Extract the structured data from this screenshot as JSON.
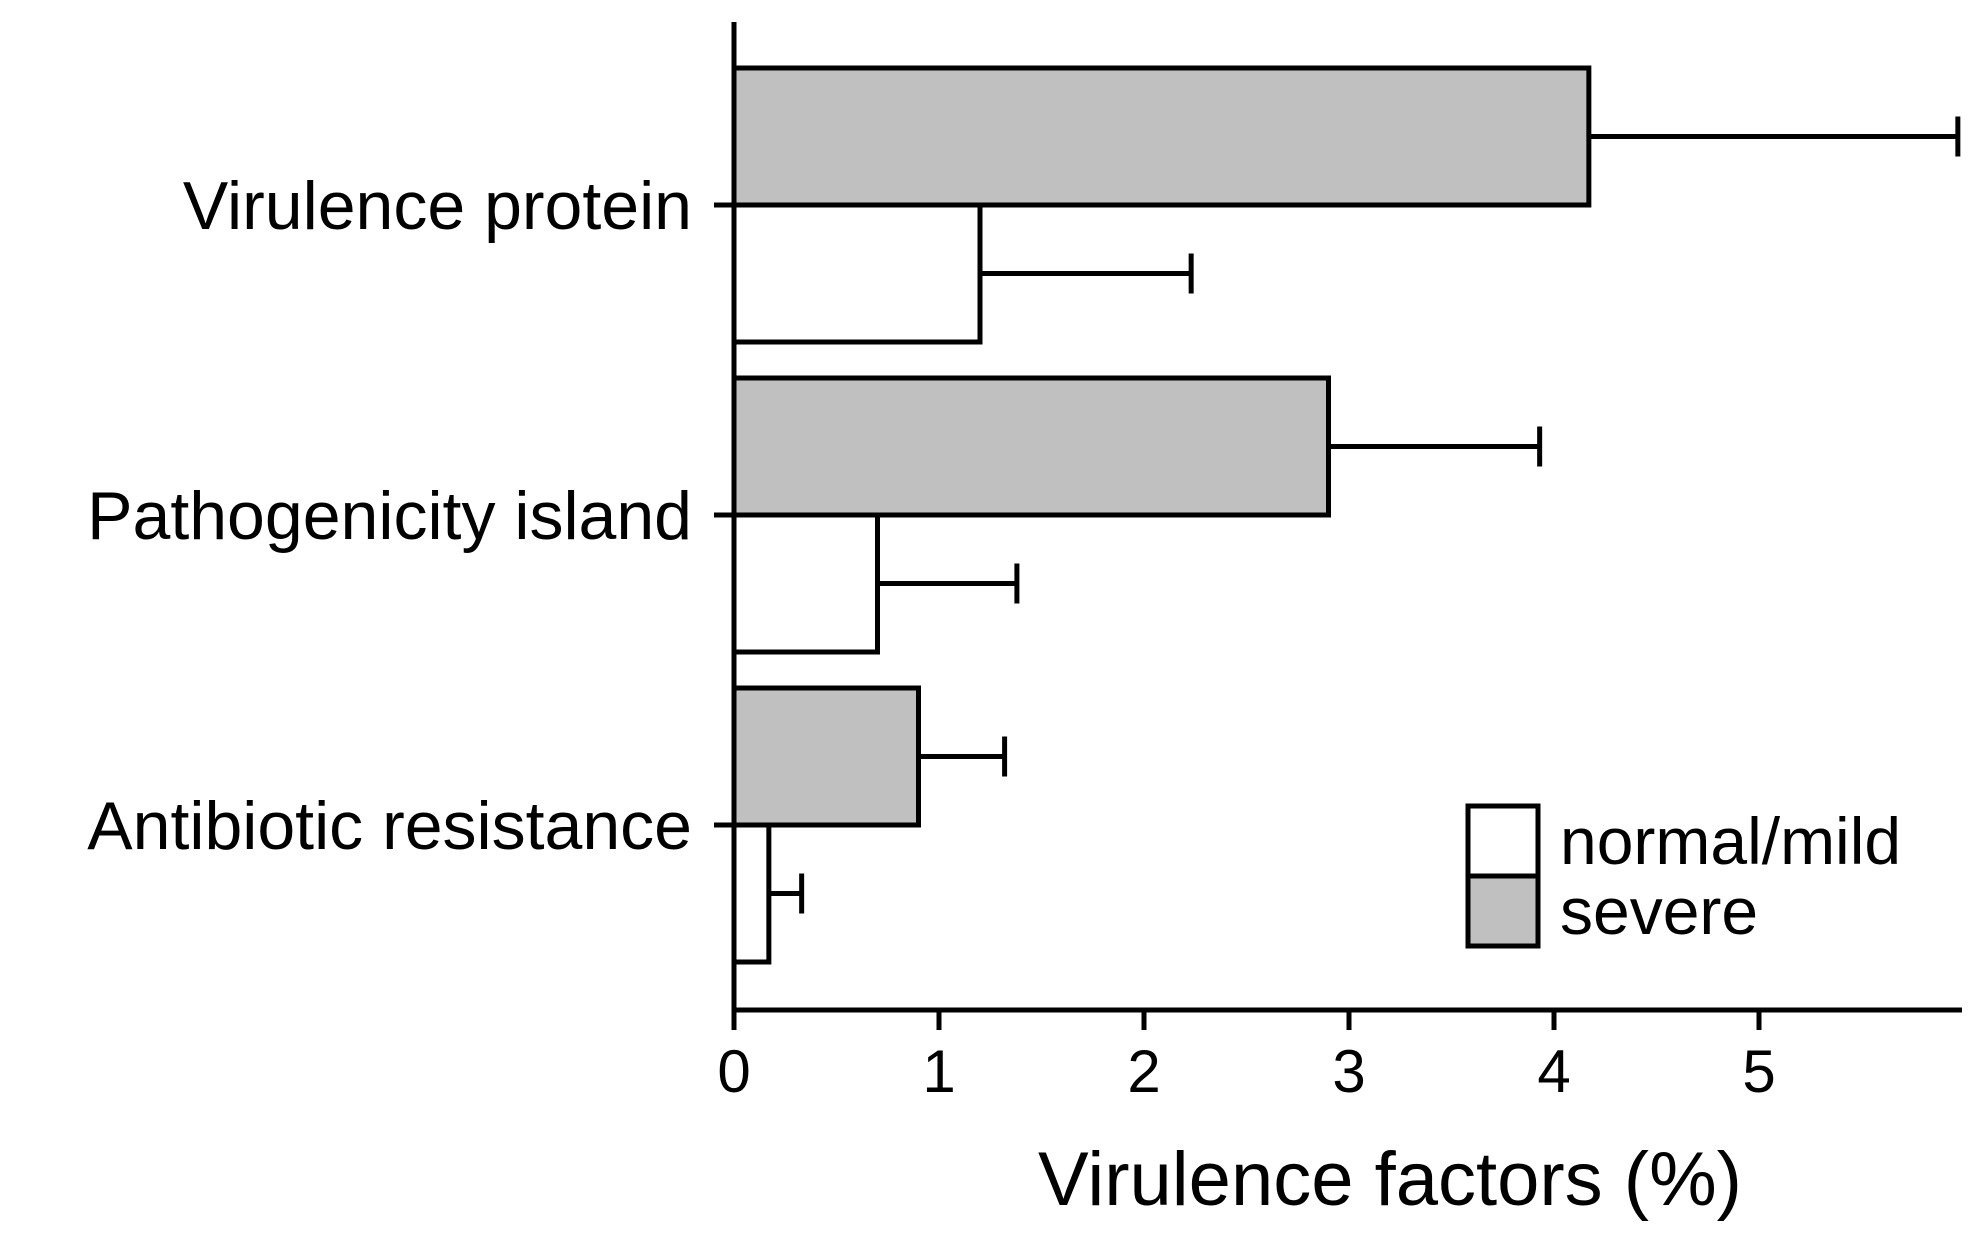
{
  "chart_data": {
    "type": "bar",
    "orientation": "horizontal",
    "categories": [
      "Virulence protein",
      "Pathogenicity island",
      "Antibiotic resistance"
    ],
    "series": [
      {
        "name": "severe",
        "color": "#c0c0c0",
        "values": [
          4.17,
          2.9,
          0.9
        ],
        "errors": [
          1.8,
          1.03,
          0.42
        ]
      },
      {
        "name": "normal/mild",
        "color": "#ffffff",
        "values": [
          1.2,
          0.7,
          0.17
        ],
        "errors": [
          1.03,
          0.68,
          0.16
        ]
      }
    ],
    "xlabel": "Virulence factors (%)",
    "xlim": [
      0,
      5.95
    ],
    "xticks": [
      0,
      1,
      2,
      3,
      4,
      5
    ],
    "grid": false,
    "legend": {
      "position": "bottom-right",
      "entries": [
        {
          "name": "normal/mild",
          "color": "#ffffff"
        },
        {
          "name": "severe",
          "color": "#c0c0c0"
        }
      ]
    }
  }
}
